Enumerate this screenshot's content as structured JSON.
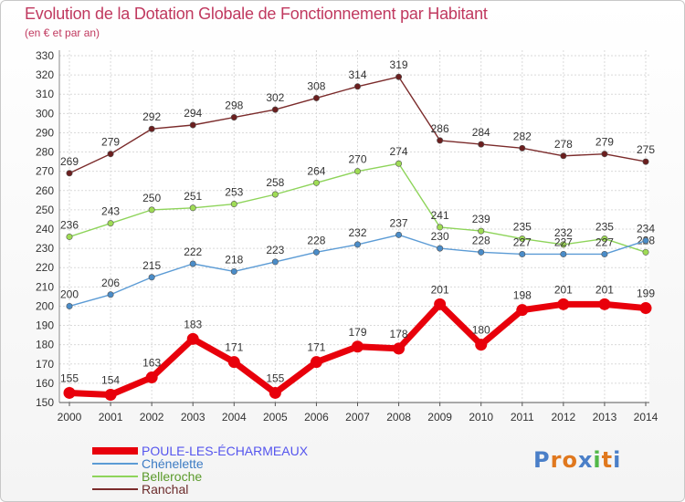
{
  "header": {
    "title": "Evolution de la Dotation Globale de Fonctionnement par Habitant",
    "subtitle": "(en € et par an)"
  },
  "brand": {
    "text": "Proxiti",
    "letter_colors": [
      "#4a7fc8",
      "#e0781e",
      "#e0781e",
      "#4a7fc8",
      "#52b848",
      "#e0781e",
      "#4a7fc8"
    ]
  },
  "chart_data": {
    "type": "line",
    "title": "Evolution de la Dotation Globale de Fonctionnement par Habitant",
    "subtitle": "(en € et par an)",
    "xlabel": "",
    "ylabel": "",
    "x": [
      "2000",
      "2001",
      "2002",
      "2003",
      "2004",
      "2005",
      "2006",
      "2007",
      "2008",
      "2009",
      "2010",
      "2011",
      "2012",
      "2013",
      "2014"
    ],
    "ylim": [
      150,
      330
    ],
    "yticks": [
      150,
      160,
      170,
      180,
      190,
      200,
      210,
      220,
      230,
      240,
      250,
      260,
      270,
      280,
      290,
      300,
      310,
      320,
      330
    ],
    "grid": true,
    "legend_position": "bottom-left",
    "series": [
      {
        "name": "POULE-LES-ÉCHARMEAUX",
        "color": "#e8000b",
        "values": [
          155,
          154,
          163,
          183,
          171,
          155,
          171,
          179,
          178,
          201,
          180,
          198,
          201,
          201,
          199
        ]
      },
      {
        "name": "Chénelette",
        "color": "#5b9bd5",
        "values": [
          200,
          206,
          215,
          222,
          218,
          223,
          228,
          232,
          237,
          230,
          228,
          227,
          227,
          227,
          234
        ]
      },
      {
        "name": "Belleroche",
        "color": "#8ed45a",
        "values": [
          236,
          243,
          250,
          251,
          253,
          258,
          264,
          270,
          274,
          241,
          239,
          235,
          232,
          235,
          228
        ]
      },
      {
        "name": "Ranchal",
        "color": "#7b2b2b",
        "values": [
          269,
          279,
          292,
          294,
          298,
          302,
          308,
          314,
          319,
          286,
          284,
          282,
          278,
          279,
          275
        ]
      }
    ],
    "point_fill": {
      "POULE-LES-ÉCHARMEAUX": "#e8000b",
      "Chénelette": "#4a8cc8",
      "Belleroche": "#9fdc55",
      "Ranchal": "#6b1f1f"
    },
    "legend_label_colors": {
      "POULE-LES-ÉCHARMEAUX": "#5555ee",
      "Chénelette": "#3d7cc4",
      "Belleroche": "#5a9a2a",
      "Ranchal": "#6b2a2a"
    }
  }
}
